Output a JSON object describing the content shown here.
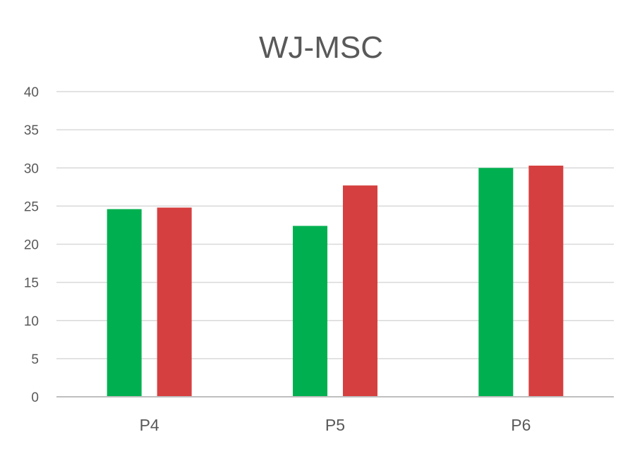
{
  "chart_data": {
    "type": "bar",
    "title": "WJ-MSC",
    "xlabel": "",
    "ylabel": "",
    "categories": [
      "P4",
      "P5",
      "P6"
    ],
    "series": [
      {
        "values": [
          24.6,
          22.4,
          30.0
        ],
        "color": "#00b050"
      },
      {
        "values": [
          24.8,
          27.7,
          30.3
        ],
        "color": "#d63f3f"
      }
    ],
    "ylim": [
      0,
      40
    ],
    "yticks": [
      0,
      5,
      10,
      15,
      20,
      25,
      30,
      35,
      40
    ],
    "grid": true,
    "legend": "none"
  }
}
